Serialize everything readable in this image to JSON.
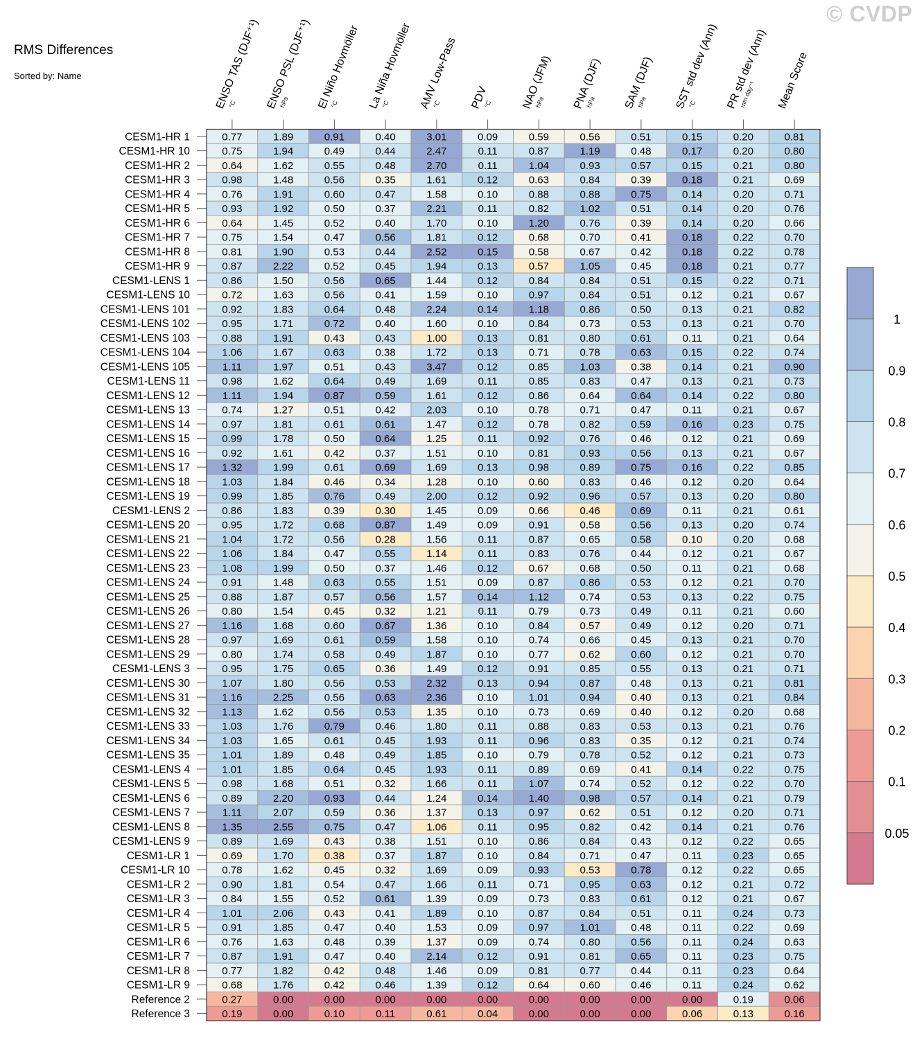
{
  "title": "RMS Differences",
  "subtitle": "Sorted by: Name",
  "watermark": "© CVDP",
  "chart_data": {
    "type": "heatmap",
    "title": "RMS Differences",
    "subtitle": "Sorted by: Name",
    "columns": [
      {
        "label": "ENSO TAS (DJF⁺¹)",
        "unit": "°C"
      },
      {
        "label": "ENSO PSL (DJF⁺¹)",
        "unit": "hPa"
      },
      {
        "label": "El Niño Hovmöller",
        "unit": "°C"
      },
      {
        "label": "La Niña Hovmöller",
        "unit": "°C"
      },
      {
        "label": "AMV Low-Pass",
        "unit": "°C"
      },
      {
        "label": "PDV",
        "unit": "°C"
      },
      {
        "label": "NAO (JFM)",
        "unit": "hPa"
      },
      {
        "label": "PNA (DJF)",
        "unit": "hPa"
      },
      {
        "label": "SAM (DJF)",
        "unit": "hPa"
      },
      {
        "label": "SST std dev (Ann)",
        "unit": "°C"
      },
      {
        "label": "PR std dev (Ann)",
        "unit": "mm day⁻¹"
      },
      {
        "label": "Mean Score",
        "unit": ""
      }
    ],
    "rows": [
      {
        "name": "CESM1-HR 1",
        "values": [
          "0.77",
          "1.89",
          "0.91",
          "0.40",
          "3.01",
          "0.09",
          "0.59",
          "0.56",
          "0.51",
          "0.15",
          "0.20",
          "0.81"
        ]
      },
      {
        "name": "CESM1-HR 10",
        "values": [
          "0.75",
          "1.94",
          "0.49",
          "0.44",
          "2.47",
          "0.11",
          "0.87",
          "1.19",
          "0.48",
          "0.17",
          "0.20",
          "0.80"
        ]
      },
      {
        "name": "CESM1-HR 2",
        "values": [
          "0.64",
          "1.62",
          "0.55",
          "0.48",
          "2.70",
          "0.11",
          "1.04",
          "0.93",
          "0.57",
          "0.15",
          "0.21",
          "0.80"
        ]
      },
      {
        "name": "CESM1-HR 3",
        "values": [
          "0.98",
          "1.48",
          "0.56",
          "0.35",
          "1.61",
          "0.12",
          "0.63",
          "0.84",
          "0.39",
          "0.18",
          "0.21",
          "0.69"
        ]
      },
      {
        "name": "CESM1-HR 4",
        "values": [
          "0.76",
          "1.91",
          "0.60",
          "0.47",
          "1.58",
          "0.10",
          "0.88",
          "0.88",
          "0.75",
          "0.14",
          "0.20",
          "0.71"
        ]
      },
      {
        "name": "CESM1-HR 5",
        "values": [
          "0.93",
          "1.92",
          "0.50",
          "0.37",
          "2.21",
          "0.11",
          "0.82",
          "1.02",
          "0.51",
          "0.14",
          "0.20",
          "0.76"
        ]
      },
      {
        "name": "CESM1-HR 6",
        "values": [
          "0.64",
          "1.45",
          "0.52",
          "0.40",
          "1.70",
          "0.10",
          "1.20",
          "0.76",
          "0.39",
          "0.14",
          "0.20",
          "0.66"
        ]
      },
      {
        "name": "CESM1-HR 7",
        "values": [
          "0.75",
          "1.54",
          "0.47",
          "0.56",
          "1.81",
          "0.12",
          "0.68",
          "0.70",
          "0.41",
          "0.18",
          "0.22",
          "0.70"
        ]
      },
      {
        "name": "CESM1-HR 8",
        "values": [
          "0.81",
          "1.90",
          "0.53",
          "0.44",
          "2.52",
          "0.15",
          "0.58",
          "0.67",
          "0.42",
          "0.18",
          "0.22",
          "0.78"
        ]
      },
      {
        "name": "CESM1-HR 9",
        "values": [
          "0.87",
          "2.22",
          "0.52",
          "0.45",
          "1.94",
          "0.13",
          "0.57",
          "1.05",
          "0.45",
          "0.18",
          "0.21",
          "0.77"
        ]
      },
      {
        "name": "CESM1-LENS 1",
        "values": [
          "0.86",
          "1.50",
          "0.56",
          "0.65",
          "1.44",
          "0.12",
          "0.84",
          "0.84",
          "0.51",
          "0.15",
          "0.22",
          "0.71"
        ]
      },
      {
        "name": "CESM1-LENS 10",
        "values": [
          "0.72",
          "1.63",
          "0.56",
          "0.41",
          "1.59",
          "0.10",
          "0.97",
          "0.84",
          "0.51",
          "0.12",
          "0.21",
          "0.67"
        ]
      },
      {
        "name": "CESM1-LENS 101",
        "values": [
          "0.92",
          "1.83",
          "0.64",
          "0.48",
          "2.24",
          "0.14",
          "1.18",
          "0.86",
          "0.50",
          "0.13",
          "0.21",
          "0.82"
        ]
      },
      {
        "name": "CESM1-LENS 102",
        "values": [
          "0.95",
          "1.71",
          "0.72",
          "0.40",
          "1.60",
          "0.10",
          "0.84",
          "0.73",
          "0.53",
          "0.13",
          "0.21",
          "0.70"
        ]
      },
      {
        "name": "CESM1-LENS 103",
        "values": [
          "0.88",
          "1.91",
          "0.43",
          "0.43",
          "1.00",
          "0.13",
          "0.81",
          "0.80",
          "0.61",
          "0.11",
          "0.21",
          "0.64"
        ]
      },
      {
        "name": "CESM1-LENS 104",
        "values": [
          "1.06",
          "1.67",
          "0.63",
          "0.38",
          "1.72",
          "0.13",
          "0.71",
          "0.78",
          "0.63",
          "0.15",
          "0.22",
          "0.74"
        ]
      },
      {
        "name": "CESM1-LENS 105",
        "values": [
          "1.11",
          "1.97",
          "0.51",
          "0.43",
          "3.47",
          "0.12",
          "0.85",
          "1.03",
          "0.38",
          "0.14",
          "0.21",
          "0.90"
        ]
      },
      {
        "name": "CESM1-LENS 11",
        "values": [
          "0.98",
          "1.62",
          "0.64",
          "0.49",
          "1.69",
          "0.11",
          "0.85",
          "0.83",
          "0.47",
          "0.13",
          "0.21",
          "0.73"
        ]
      },
      {
        "name": "CESM1-LENS 12",
        "values": [
          "1.11",
          "1.94",
          "0.87",
          "0.59",
          "1.61",
          "0.12",
          "0.86",
          "0.64",
          "0.64",
          "0.14",
          "0.22",
          "0.80"
        ]
      },
      {
        "name": "CESM1-LENS 13",
        "values": [
          "0.74",
          "1.27",
          "0.51",
          "0.42",
          "2.03",
          "0.10",
          "0.78",
          "0.71",
          "0.47",
          "0.11",
          "0.21",
          "0.67"
        ]
      },
      {
        "name": "CESM1-LENS 14",
        "values": [
          "0.97",
          "1.81",
          "0.61",
          "0.61",
          "1.47",
          "0.12",
          "0.78",
          "0.82",
          "0.59",
          "0.16",
          "0.23",
          "0.75"
        ]
      },
      {
        "name": "CESM1-LENS 15",
        "values": [
          "0.99",
          "1.78",
          "0.50",
          "0.64",
          "1.25",
          "0.11",
          "0.92",
          "0.76",
          "0.46",
          "0.12",
          "0.21",
          "0.69"
        ]
      },
      {
        "name": "CESM1-LENS 16",
        "values": [
          "0.92",
          "1.61",
          "0.42",
          "0.37",
          "1.51",
          "0.10",
          "0.81",
          "0.93",
          "0.56",
          "0.13",
          "0.21",
          "0.67"
        ]
      },
      {
        "name": "CESM1-LENS 17",
        "values": [
          "1.32",
          "1.99",
          "0.61",
          "0.69",
          "1.69",
          "0.13",
          "0.98",
          "0.89",
          "0.75",
          "0.16",
          "0.22",
          "0.85"
        ]
      },
      {
        "name": "CESM1-LENS 18",
        "values": [
          "1.03",
          "1.84",
          "0.46",
          "0.34",
          "1.28",
          "0.10",
          "0.60",
          "0.83",
          "0.46",
          "0.12",
          "0.20",
          "0.64"
        ]
      },
      {
        "name": "CESM1-LENS 19",
        "values": [
          "0.99",
          "1.85",
          "0.76",
          "0.49",
          "2.00",
          "0.12",
          "0.92",
          "0.96",
          "0.57",
          "0.13",
          "0.20",
          "0.80"
        ]
      },
      {
        "name": "CESM1-LENS 2",
        "values": [
          "0.86",
          "1.83",
          "0.39",
          "0.30",
          "1.45",
          "0.09",
          "0.66",
          "0.46",
          "0.69",
          "0.11",
          "0.21",
          "0.61"
        ]
      },
      {
        "name": "CESM1-LENS 20",
        "values": [
          "0.95",
          "1.72",
          "0.68",
          "0.87",
          "1.49",
          "0.09",
          "0.91",
          "0.58",
          "0.56",
          "0.13",
          "0.20",
          "0.74"
        ]
      },
      {
        "name": "CESM1-LENS 21",
        "values": [
          "1.04",
          "1.72",
          "0.56",
          "0.28",
          "1.56",
          "0.11",
          "0.87",
          "0.65",
          "0.58",
          "0.10",
          "0.20",
          "0.68"
        ]
      },
      {
        "name": "CESM1-LENS 22",
        "values": [
          "1.06",
          "1.84",
          "0.47",
          "0.55",
          "1.14",
          "0.11",
          "0.83",
          "0.76",
          "0.44",
          "0.12",
          "0.21",
          "0.67"
        ]
      },
      {
        "name": "CESM1-LENS 23",
        "values": [
          "1.08",
          "1.99",
          "0.50",
          "0.37",
          "1.46",
          "0.12",
          "0.67",
          "0.68",
          "0.50",
          "0.11",
          "0.21",
          "0.68"
        ]
      },
      {
        "name": "CESM1-LENS 24",
        "values": [
          "0.91",
          "1.48",
          "0.63",
          "0.55",
          "1.51",
          "0.09",
          "0.87",
          "0.86",
          "0.53",
          "0.12",
          "0.21",
          "0.70"
        ]
      },
      {
        "name": "CESM1-LENS 25",
        "values": [
          "0.88",
          "1.87",
          "0.57",
          "0.56",
          "1.57",
          "0.14",
          "1.12",
          "0.74",
          "0.53",
          "0.13",
          "0.22",
          "0.75"
        ]
      },
      {
        "name": "CESM1-LENS 26",
        "values": [
          "0.80",
          "1.54",
          "0.45",
          "0.32",
          "1.21",
          "0.11",
          "0.79",
          "0.73",
          "0.49",
          "0.11",
          "0.21",
          "0.60"
        ]
      },
      {
        "name": "CESM1-LENS 27",
        "values": [
          "1.16",
          "1.68",
          "0.60",
          "0.67",
          "1.36",
          "0.10",
          "0.84",
          "0.57",
          "0.49",
          "0.12",
          "0.20",
          "0.71"
        ]
      },
      {
        "name": "CESM1-LENS 28",
        "values": [
          "0.97",
          "1.69",
          "0.61",
          "0.59",
          "1.58",
          "0.10",
          "0.74",
          "0.66",
          "0.45",
          "0.13",
          "0.21",
          "0.70"
        ]
      },
      {
        "name": "CESM1-LENS 29",
        "values": [
          "0.80",
          "1.74",
          "0.58",
          "0.49",
          "1.87",
          "0.10",
          "0.77",
          "0.62",
          "0.60",
          "0.12",
          "0.21",
          "0.70"
        ]
      },
      {
        "name": "CESM1-LENS 3",
        "values": [
          "0.95",
          "1.75",
          "0.65",
          "0.36",
          "1.49",
          "0.12",
          "0.91",
          "0.85",
          "0.55",
          "0.13",
          "0.21",
          "0.71"
        ]
      },
      {
        "name": "CESM1-LENS 30",
        "values": [
          "1.07",
          "1.80",
          "0.56",
          "0.53",
          "2.32",
          "0.13",
          "0.94",
          "0.87",
          "0.48",
          "0.13",
          "0.21",
          "0.81"
        ]
      },
      {
        "name": "CESM1-LENS 31",
        "values": [
          "1.16",
          "2.25",
          "0.56",
          "0.63",
          "2.36",
          "0.10",
          "1.01",
          "0.94",
          "0.40",
          "0.13",
          "0.21",
          "0.84"
        ]
      },
      {
        "name": "CESM1-LENS 32",
        "values": [
          "1.13",
          "1.62",
          "0.56",
          "0.53",
          "1.35",
          "0.10",
          "0.73",
          "0.69",
          "0.40",
          "0.12",
          "0.20",
          "0.68"
        ]
      },
      {
        "name": "CESM1-LENS 33",
        "values": [
          "1.03",
          "1.76",
          "0.79",
          "0.46",
          "1.80",
          "0.11",
          "0.88",
          "0.83",
          "0.53",
          "0.13",
          "0.21",
          "0.76"
        ]
      },
      {
        "name": "CESM1-LENS 34",
        "values": [
          "1.03",
          "1.65",
          "0.61",
          "0.45",
          "1.93",
          "0.11",
          "0.96",
          "0.83",
          "0.35",
          "0.12",
          "0.21",
          "0.74"
        ]
      },
      {
        "name": "CESM1-LENS 35",
        "values": [
          "1.01",
          "1.89",
          "0.48",
          "0.49",
          "1.85",
          "0.10",
          "0.79",
          "0.78",
          "0.52",
          "0.12",
          "0.21",
          "0.73"
        ]
      },
      {
        "name": "CESM1-LENS 4",
        "values": [
          "1.01",
          "1.85",
          "0.64",
          "0.45",
          "1.93",
          "0.11",
          "0.89",
          "0.69",
          "0.41",
          "0.14",
          "0.22",
          "0.75"
        ]
      },
      {
        "name": "CESM1-LENS 5",
        "values": [
          "0.98",
          "1.68",
          "0.51",
          "0.32",
          "1.66",
          "0.11",
          "1.07",
          "0.74",
          "0.52",
          "0.12",
          "0.22",
          "0.70"
        ]
      },
      {
        "name": "CESM1-LENS 6",
        "values": [
          "0.89",
          "2.20",
          "0.93",
          "0.44",
          "1.24",
          "0.14",
          "1.40",
          "0.98",
          "0.57",
          "0.14",
          "0.21",
          "0.79"
        ]
      },
      {
        "name": "CESM1-LENS 7",
        "values": [
          "1.11",
          "2.07",
          "0.59",
          "0.36",
          "1.37",
          "0.13",
          "0.97",
          "0.62",
          "0.51",
          "0.12",
          "0.20",
          "0.71"
        ]
      },
      {
        "name": "CESM1-LENS 8",
        "values": [
          "1.35",
          "2.55",
          "0.75",
          "0.47",
          "1.06",
          "0.11",
          "0.95",
          "0.82",
          "0.42",
          "0.14",
          "0.21",
          "0.76"
        ]
      },
      {
        "name": "CESM1-LENS 9",
        "values": [
          "0.89",
          "1.69",
          "0.43",
          "0.38",
          "1.51",
          "0.10",
          "0.86",
          "0.84",
          "0.43",
          "0.12",
          "0.22",
          "0.65"
        ]
      },
      {
        "name": "CESM1-LR 1",
        "values": [
          "0.69",
          "1.70",
          "0.38",
          "0.37",
          "1.87",
          "0.10",
          "0.84",
          "0.71",
          "0.47",
          "0.11",
          "0.23",
          "0.65"
        ]
      },
      {
        "name": "CESM1-LR 10",
        "values": [
          "0.78",
          "1.62",
          "0.45",
          "0.32",
          "1.69",
          "0.09",
          "0.93",
          "0.53",
          "0.78",
          "0.12",
          "0.22",
          "0.65"
        ]
      },
      {
        "name": "CESM1-LR 2",
        "values": [
          "0.90",
          "1.81",
          "0.54",
          "0.47",
          "1.66",
          "0.11",
          "0.71",
          "0.95",
          "0.63",
          "0.12",
          "0.21",
          "0.72"
        ]
      },
      {
        "name": "CESM1-LR 3",
        "values": [
          "0.84",
          "1.55",
          "0.52",
          "0.61",
          "1.39",
          "0.09",
          "0.73",
          "0.83",
          "0.61",
          "0.12",
          "0.21",
          "0.67"
        ]
      },
      {
        "name": "CESM1-LR 4",
        "values": [
          "1.01",
          "2.06",
          "0.43",
          "0.41",
          "1.89",
          "0.10",
          "0.87",
          "0.84",
          "0.51",
          "0.11",
          "0.24",
          "0.73"
        ]
      },
      {
        "name": "CESM1-LR 5",
        "values": [
          "0.91",
          "1.85",
          "0.47",
          "0.40",
          "1.53",
          "0.09",
          "0.97",
          "1.01",
          "0.48",
          "0.11",
          "0.22",
          "0.69"
        ]
      },
      {
        "name": "CESM1-LR 6",
        "values": [
          "0.76",
          "1.63",
          "0.48",
          "0.39",
          "1.37",
          "0.09",
          "0.74",
          "0.80",
          "0.56",
          "0.11",
          "0.24",
          "0.63"
        ]
      },
      {
        "name": "CESM1-LR 7",
        "values": [
          "0.87",
          "1.91",
          "0.47",
          "0.40",
          "2.14",
          "0.12",
          "0.91",
          "0.81",
          "0.65",
          "0.11",
          "0.23",
          "0.75"
        ]
      },
      {
        "name": "CESM1-LR 8",
        "values": [
          "0.77",
          "1.82",
          "0.42",
          "0.48",
          "1.46",
          "0.09",
          "0.81",
          "0.77",
          "0.44",
          "0.11",
          "0.23",
          "0.64"
        ]
      },
      {
        "name": "CESM1-LR 9",
        "values": [
          "0.68",
          "1.76",
          "0.42",
          "0.46",
          "1.39",
          "0.12",
          "0.64",
          "0.60",
          "0.46",
          "0.11",
          "0.24",
          "0.62"
        ]
      },
      {
        "name": "Reference 2",
        "values": [
          "0.27",
          "0.00",
          "0.00",
          "0.00",
          "0.00",
          "0.00",
          "0.00",
          "0.00",
          "0.00",
          "0.00",
          "0.19",
          "0.06"
        ]
      },
      {
        "name": "Reference 3",
        "values": [
          "0.19",
          "0.00",
          "0.10",
          "0.11",
          "0.61",
          "0.04",
          "0.00",
          "0.00",
          "0.00",
          "0.06",
          "0.13",
          "0.16"
        ]
      }
    ],
    "colorbar": {
      "labels": [
        "1",
        "0.9",
        "0.8",
        "0.7",
        "0.6",
        "0.5",
        "0.4",
        "0.3",
        "0.2",
        "0.1",
        "0.05"
      ],
      "levels": [
        0.05,
        0.1,
        0.2,
        0.3,
        0.4,
        0.5,
        0.6,
        0.7,
        0.8,
        0.9,
        1.0
      ],
      "colors": [
        "#d47a8e",
        "#e38e91",
        "#ed9b94",
        "#f5b79d",
        "#fbd3ae",
        "#fdeac6",
        "#f3f3ea",
        "#e3f0f4",
        "#cde3ef",
        "#b8d5ea",
        "#a5bede",
        "#97a8d3"
      ]
    }
  }
}
